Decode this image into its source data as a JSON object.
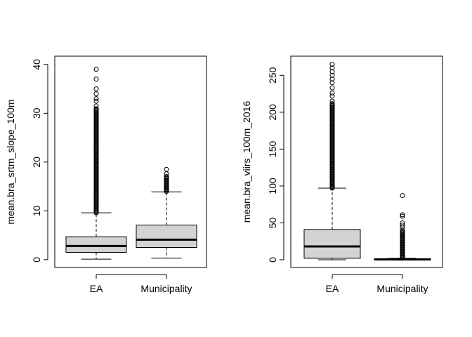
{
  "chart_data": [
    {
      "type": "box",
      "title": "",
      "xlabel": "",
      "ylabel": "mean.bra_srtm_slope_100m",
      "categories": [
        "EA",
        "Municipality"
      ],
      "ylim": [
        0,
        40
      ],
      "yticks": [
        0,
        10,
        20,
        30,
        40
      ],
      "boxes": [
        {
          "name": "EA",
          "whisker_low": 0.1,
          "q1": 1.5,
          "median": 2.8,
          "q3": 4.7,
          "whisker_high": 9.6,
          "fill": "#d3d3d3",
          "outliers_dense_range": [
            9.6,
            31.0
          ],
          "outliers": [
            31.5,
            32.5,
            33.0,
            34.0,
            35.0,
            37.0,
            39.0
          ]
        },
        {
          "name": "Municipality",
          "whisker_low": 0.3,
          "q1": 2.5,
          "median": 4.1,
          "q3": 7.1,
          "whisker_high": 13.9,
          "fill": "#d3d3d3",
          "outliers_dense_range": [
            14.0,
            17.2
          ],
          "outliers": [
            17.6,
            18.5
          ]
        }
      ]
    },
    {
      "type": "box",
      "title": "",
      "xlabel": "",
      "ylabel": "mean.bra_viirs_100m_2016",
      "categories": [
        "EA",
        "Municipality"
      ],
      "ylim": [
        0,
        265
      ],
      "yticks": [
        0,
        50,
        100,
        150,
        200,
        250
      ],
      "boxes": [
        {
          "name": "EA",
          "whisker_low": 0,
          "q1": 2,
          "median": 18,
          "q3": 41,
          "whisker_high": 97,
          "fill": "#d3d3d3",
          "outliers_dense_range": [
            97,
            212
          ],
          "outliers": [
            215,
            222,
            226,
            233,
            240,
            245,
            250,
            255,
            260,
            265
          ]
        },
        {
          "name": "Municipality",
          "whisker_low": 0,
          "q1": 0,
          "median": 0.5,
          "q3": 1,
          "whisker_high": 2,
          "fill": "#d3d3d3",
          "outliers_dense_range": [
            2,
            38
          ],
          "outliers": [
            40,
            44,
            47,
            50,
            59,
            61,
            87
          ]
        }
      ]
    }
  ]
}
